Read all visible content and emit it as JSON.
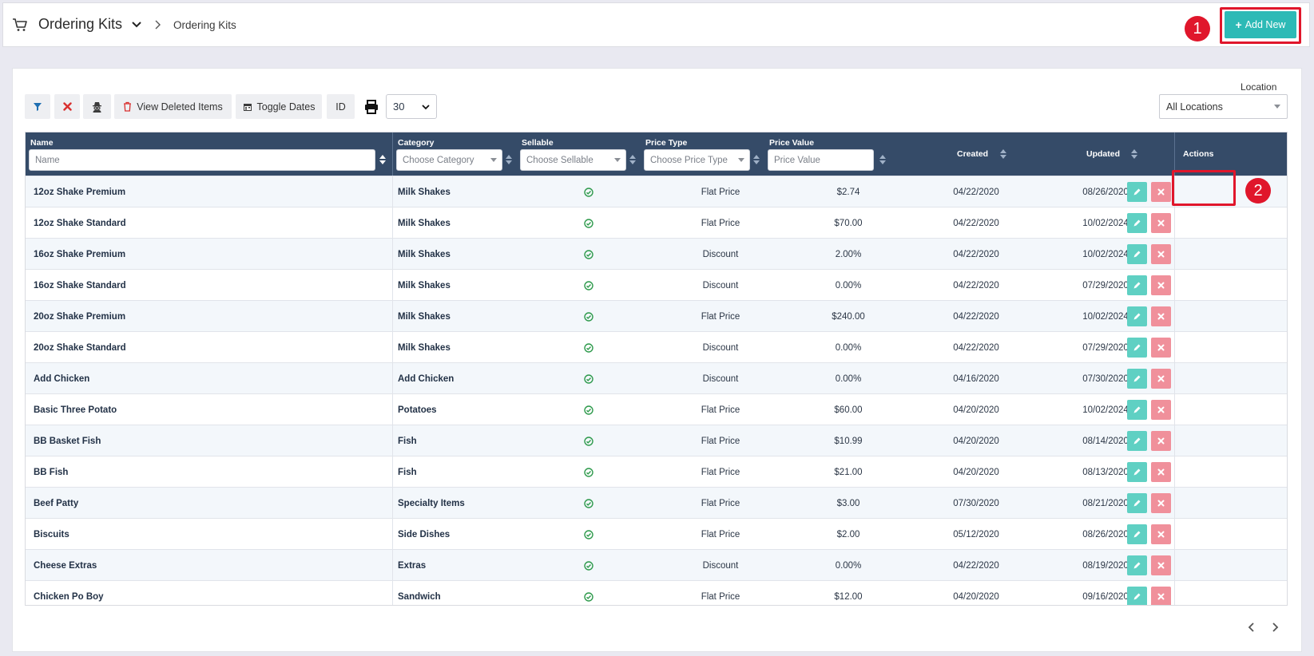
{
  "header": {
    "title": "Ordering Kits",
    "breadcrumb": "Ordering Kits",
    "add_new_label": "Add New",
    "annotation_1": "1",
    "annotation_2": "2"
  },
  "toolbar": {
    "view_deleted_label": "View Deleted Items",
    "toggle_dates_label": "Toggle Dates",
    "id_label": "ID",
    "page_size": "30"
  },
  "location": {
    "label": "Location",
    "value": "All Locations"
  },
  "table": {
    "columns": {
      "name": "Name",
      "category": "Category",
      "sellable": "Sellable",
      "price_type": "Price Type",
      "price_value": "Price Value",
      "created": "Created",
      "updated": "Updated",
      "actions": "Actions"
    },
    "filters": {
      "name_placeholder": "Name",
      "category_placeholder": "Choose Category",
      "sellable_placeholder": "Choose Sellable",
      "price_type_placeholder": "Choose Price Type",
      "price_value_placeholder": "Price Value"
    },
    "rows": [
      {
        "name": "12oz Shake Premium",
        "category": "Milk Shakes",
        "price_type": "Flat Price",
        "price_value": "$2.74",
        "created": "04/22/2020",
        "updated": "08/26/2020"
      },
      {
        "name": "12oz Shake Standard",
        "category": "Milk Shakes",
        "price_type": "Flat Price",
        "price_value": "$70.00",
        "created": "04/22/2020",
        "updated": "10/02/2024"
      },
      {
        "name": "16oz Shake Premium",
        "category": "Milk Shakes",
        "price_type": "Discount",
        "price_value": "2.00%",
        "created": "04/22/2020",
        "updated": "10/02/2024"
      },
      {
        "name": "16oz Shake Standard",
        "category": "Milk Shakes",
        "price_type": "Discount",
        "price_value": "0.00%",
        "created": "04/22/2020",
        "updated": "07/29/2020"
      },
      {
        "name": "20oz Shake Premium",
        "category": "Milk Shakes",
        "price_type": "Flat Price",
        "price_value": "$240.00",
        "created": "04/22/2020",
        "updated": "10/02/2024"
      },
      {
        "name": "20oz Shake Standard",
        "category": "Milk Shakes",
        "price_type": "Discount",
        "price_value": "0.00%",
        "created": "04/22/2020",
        "updated": "07/29/2020"
      },
      {
        "name": "Add Chicken",
        "category": "Add Chicken",
        "price_type": "Discount",
        "price_value": "0.00%",
        "created": "04/16/2020",
        "updated": "07/30/2020"
      },
      {
        "name": "Basic Three Potato",
        "category": "Potatoes",
        "price_type": "Flat Price",
        "price_value": "$60.00",
        "created": "04/20/2020",
        "updated": "10/02/2024"
      },
      {
        "name": "BB Basket Fish",
        "category": "Fish",
        "price_type": "Flat Price",
        "price_value": "$10.99",
        "created": "04/20/2020",
        "updated": "08/14/2020"
      },
      {
        "name": "BB Fish",
        "category": "Fish",
        "price_type": "Flat Price",
        "price_value": "$21.00",
        "created": "04/20/2020",
        "updated": "08/13/2020"
      },
      {
        "name": "Beef Patty",
        "category": "Specialty Items",
        "price_type": "Flat Price",
        "price_value": "$3.00",
        "created": "07/30/2020",
        "updated": "08/21/2020"
      },
      {
        "name": "Biscuits",
        "category": "Side Dishes",
        "price_type": "Flat Price",
        "price_value": "$2.00",
        "created": "05/12/2020",
        "updated": "08/26/2020"
      },
      {
        "name": "Cheese Extras",
        "category": "Extras",
        "price_type": "Discount",
        "price_value": "0.00%",
        "created": "04/22/2020",
        "updated": "08/19/2020"
      },
      {
        "name": "Chicken Po Boy",
        "category": "Sandwich",
        "price_type": "Flat Price",
        "price_value": "$12.00",
        "created": "04/20/2020",
        "updated": "09/16/2020"
      }
    ]
  },
  "colors": {
    "accent": "#2dbab6",
    "header_bg": "#354b68",
    "highlight": "#e0162b",
    "delete": "#f0909b",
    "check": "#2e9a4c"
  }
}
